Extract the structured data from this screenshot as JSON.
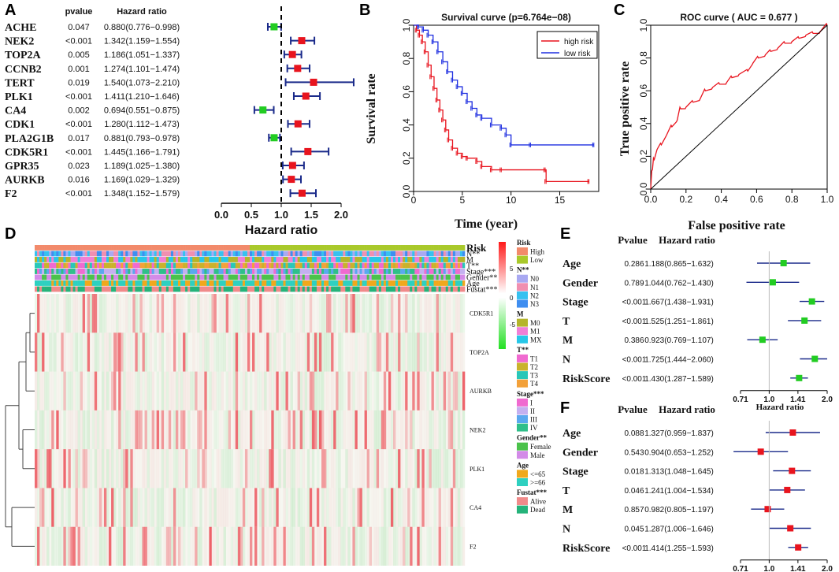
{
  "chart_data": [
    {
      "panel": "A",
      "type": "forest",
      "headers": {
        "pvalue": "pvalue",
        "hr": "Hazard ratio"
      },
      "xlabel": "Hazard ratio",
      "xlim": [
        0,
        2.0
      ],
      "ticks": [
        "0.0",
        "0.5",
        "1.0",
        "1.5",
        "2.0"
      ],
      "ref": 1.0,
      "rows": [
        {
          "gene": "ACHE",
          "p": "0.047",
          "hr_text": "0.880(0.776−0.998)",
          "hr": 0.88,
          "lo": 0.776,
          "hi": 0.998,
          "color": "#22cc22"
        },
        {
          "gene": "NEK2",
          "p": "<0.001",
          "hr_text": "1.342(1.159−1.554)",
          "hr": 1.342,
          "lo": 1.159,
          "hi": 1.554,
          "color": "#e8141e"
        },
        {
          "gene": "TOP2A",
          "p": "0.005",
          "hr_text": "1.186(1.051−1.337)",
          "hr": 1.186,
          "lo": 1.051,
          "hi": 1.337,
          "color": "#e8141e"
        },
        {
          "gene": "CCNB2",
          "p": "0.001",
          "hr_text": "1.274(1.101−1.474)",
          "hr": 1.274,
          "lo": 1.101,
          "hi": 1.474,
          "color": "#e8141e"
        },
        {
          "gene": "TERT",
          "p": "0.019",
          "hr_text": "1.540(1.073−2.210)",
          "hr": 1.54,
          "lo": 1.073,
          "hi": 2.21,
          "color": "#e8141e"
        },
        {
          "gene": "PLK1",
          "p": "<0.001",
          "hr_text": "1.411(1.210−1.646)",
          "hr": 1.411,
          "lo": 1.21,
          "hi": 1.646,
          "color": "#e8141e"
        },
        {
          "gene": "CA4",
          "p": "0.002",
          "hr_text": "0.694(0.551−0.875)",
          "hr": 0.694,
          "lo": 0.551,
          "hi": 0.875,
          "color": "#22cc22"
        },
        {
          "gene": "CDK1",
          "p": "<0.001",
          "hr_text": "1.280(1.112−1.473)",
          "hr": 1.28,
          "lo": 1.112,
          "hi": 1.473,
          "color": "#e8141e"
        },
        {
          "gene": "PLA2G1B",
          "p": "0.017",
          "hr_text": "0.881(0.793−0.978)",
          "hr": 0.881,
          "lo": 0.793,
          "hi": 0.978,
          "color": "#22cc22"
        },
        {
          "gene": "CDK5R1",
          "p": "<0.001",
          "hr_text": "1.445(1.166−1.791)",
          "hr": 1.445,
          "lo": 1.166,
          "hi": 1.791,
          "color": "#e8141e"
        },
        {
          "gene": "GPR35",
          "p": "0.023",
          "hr_text": "1.189(1.025−1.380)",
          "hr": 1.189,
          "lo": 1.025,
          "hi": 1.38,
          "color": "#e8141e"
        },
        {
          "gene": "AURKB",
          "p": "0.016",
          "hr_text": "1.169(1.029−1.329)",
          "hr": 1.169,
          "lo": 1.029,
          "hi": 1.329,
          "color": "#e8141e"
        },
        {
          "gene": "F2",
          "p": "<0.001",
          "hr_text": "1.348(1.152−1.579)",
          "hr": 1.348,
          "lo": 1.152,
          "hi": 1.579,
          "color": "#e8141e"
        }
      ]
    },
    {
      "panel": "B",
      "type": "line",
      "title": "Survival curve (p=6.764e−08)",
      "xlabel": "Time (year)",
      "ylabel": "Survival rate",
      "xlim": [
        0,
        19
      ],
      "ylim": [
        0,
        1
      ],
      "xticks": [
        "0",
        "5",
        "10",
        "15"
      ],
      "yticks": [
        "0.0",
        "0.2",
        "0.4",
        "0.6",
        "0.8",
        "1.0"
      ],
      "legend": [
        "high risk",
        "low risk"
      ],
      "series": [
        {
          "name": "high risk",
          "color": "#e8141e",
          "points": [
            [
              0,
              1.0
            ],
            [
              0.3,
              0.97
            ],
            [
              0.6,
              0.94
            ],
            [
              0.9,
              0.9
            ],
            [
              1.2,
              0.84
            ],
            [
              1.5,
              0.76
            ],
            [
              1.8,
              0.69
            ],
            [
              2.1,
              0.62
            ],
            [
              2.4,
              0.55
            ],
            [
              2.7,
              0.49
            ],
            [
              3.0,
              0.43
            ],
            [
              3.3,
              0.37
            ],
            [
              3.6,
              0.31
            ],
            [
              4.0,
              0.26
            ],
            [
              4.5,
              0.23
            ],
            [
              5.0,
              0.21
            ],
            [
              5.5,
              0.2
            ],
            [
              6.5,
              0.18
            ],
            [
              7.0,
              0.15
            ],
            [
              8.0,
              0.13
            ],
            [
              9.0,
              0.13
            ],
            [
              13.5,
              0.13
            ],
            [
              13.6,
              0.06
            ],
            [
              18.0,
              0.06
            ]
          ]
        },
        {
          "name": "low risk",
          "color": "#1f2fe0",
          "points": [
            [
              0,
              1.0
            ],
            [
              0.5,
              0.99
            ],
            [
              1.0,
              0.97
            ],
            [
              1.5,
              0.94
            ],
            [
              2.0,
              0.9
            ],
            [
              2.5,
              0.84
            ],
            [
              3.0,
              0.78
            ],
            [
              3.5,
              0.72
            ],
            [
              4.0,
              0.67
            ],
            [
              4.5,
              0.63
            ],
            [
              5.0,
              0.59
            ],
            [
              5.5,
              0.54
            ],
            [
              6.0,
              0.5
            ],
            [
              6.5,
              0.46
            ],
            [
              7.0,
              0.44
            ],
            [
              8.0,
              0.4
            ],
            [
              9.0,
              0.38
            ],
            [
              9.5,
              0.34
            ],
            [
              10.0,
              0.28
            ],
            [
              12.0,
              0.28
            ],
            [
              18.5,
              0.28
            ]
          ]
        }
      ]
    },
    {
      "panel": "C",
      "type": "line",
      "title": "ROC curve ( AUC =  0.677 )",
      "xlabel": "False positive rate",
      "ylabel": "True positive rate",
      "xlim": [
        0,
        1
      ],
      "ylim": [
        0,
        1
      ],
      "xticks": [
        "0.0",
        "0.2",
        "0.4",
        "0.6",
        "0.8",
        "1.0"
      ],
      "yticks": [
        "0.0",
        "0.2",
        "0.4",
        "0.6",
        "0.8",
        "1.0"
      ],
      "series": [
        {
          "name": "ROC",
          "color": "#e8141e",
          "points": [
            [
              0,
              0
            ],
            [
              0.01,
              0.12
            ],
            [
              0.02,
              0.18
            ],
            [
              0.04,
              0.25
            ],
            [
              0.06,
              0.27
            ],
            [
              0.09,
              0.33
            ],
            [
              0.12,
              0.38
            ],
            [
              0.15,
              0.42
            ],
            [
              0.17,
              0.49
            ],
            [
              0.2,
              0.5
            ],
            [
              0.24,
              0.53
            ],
            [
              0.28,
              0.55
            ],
            [
              0.31,
              0.6
            ],
            [
              0.35,
              0.62
            ],
            [
              0.39,
              0.64
            ],
            [
              0.43,
              0.65
            ],
            [
              0.46,
              0.68
            ],
            [
              0.5,
              0.7
            ],
            [
              0.55,
              0.72
            ],
            [
              0.58,
              0.77
            ],
            [
              0.61,
              0.8
            ],
            [
              0.65,
              0.82
            ],
            [
              0.68,
              0.84
            ],
            [
              0.72,
              0.86
            ],
            [
              0.76,
              0.89
            ],
            [
              0.8,
              0.9
            ],
            [
              0.84,
              0.92
            ],
            [
              0.88,
              0.94
            ],
            [
              0.92,
              0.95
            ],
            [
              0.96,
              0.96
            ],
            [
              1.0,
              1.0
            ]
          ]
        },
        {
          "name": "diagonal",
          "color": "#000000",
          "points": [
            [
              0,
              0
            ],
            [
              1,
              1
            ]
          ]
        }
      ]
    },
    {
      "panel": "D",
      "type": "heatmap",
      "annotation_rows": [
        "Risk",
        "N**",
        "M",
        "T**",
        "Stage***",
        "Gender**",
        "Age",
        "Fustat***"
      ],
      "genes": [
        "CDK5R1",
        "TOP2A",
        "AURKB",
        "NEK2",
        "PLK1",
        "CA4",
        "F2"
      ],
      "scale": [
        "5",
        "0",
        "-5"
      ],
      "legend": [
        {
          "title": "Risk",
          "items": [
            {
              "label": "High",
              "color": "#f28a6b"
            },
            {
              "label": "Low",
              "color": "#a9c92b"
            }
          ]
        },
        {
          "title": "N**",
          "items": [
            {
              "label": "N0",
              "color": "#a9a9f2"
            },
            {
              "label": "N1",
              "color": "#f08fb0"
            },
            {
              "label": "N2",
              "color": "#36c1f0"
            },
            {
              "label": "N3",
              "color": "#3f8ef0"
            }
          ]
        },
        {
          "title": "M",
          "items": [
            {
              "label": "M0",
              "color": "#b5b52a"
            },
            {
              "label": "M1",
              "color": "#f07fd6"
            },
            {
              "label": "MX",
              "color": "#27c7e8"
            }
          ]
        },
        {
          "title": "T**",
          "items": [
            {
              "label": "T1",
              "color": "#f06ad0"
            },
            {
              "label": "T2",
              "color": "#c9b22c"
            },
            {
              "label": "T3",
              "color": "#29c7b8"
            },
            {
              "label": "T4",
              "color": "#f3a13a"
            }
          ]
        },
        {
          "title": "Stage***",
          "items": [
            {
              "label": "I",
              "color": "#f06ad0"
            },
            {
              "label": "II",
              "color": "#c4b0f0"
            },
            {
              "label": "III",
              "color": "#5aa8ef"
            },
            {
              "label": "IV",
              "color": "#2fbf8a"
            }
          ]
        },
        {
          "title": "Gender**",
          "items": [
            {
              "label": "Female",
              "color": "#4bc24b"
            },
            {
              "label": "Male",
              "color": "#d38be8"
            }
          ]
        },
        {
          "title": "Age",
          "items": [
            {
              "label": "<=65",
              "color": "#f0a81c"
            },
            {
              "label": ">=66",
              "color": "#2ed0c0"
            }
          ]
        },
        {
          "title": "Fustat***",
          "items": [
            {
              "label": "Alive",
              "color": "#f08a8a"
            },
            {
              "label": "Dead",
              "color": "#25b37a"
            }
          ]
        }
      ]
    },
    {
      "panel": "E",
      "type": "forest",
      "headers": {
        "pvalue": "Pvalue",
        "hr": "Hazard ratio"
      },
      "xlabel": "Hazard ratio",
      "log": true,
      "xlim": [
        0.71,
        2.0
      ],
      "ticks": [
        "0.71",
        "1.0",
        "1.41",
        "2.0"
      ],
      "ref": 1.0,
      "rows": [
        {
          "label": "Age",
          "p": "0.286",
          "hr_text": "1.188(0.865−1.632)",
          "hr": 1.188,
          "lo": 0.865,
          "hi": 1.632,
          "color": "#22cc22"
        },
        {
          "label": "Gender",
          "p": "0.789",
          "hr_text": "1.044(0.762−1.430)",
          "hr": 1.044,
          "lo": 0.762,
          "hi": 1.43,
          "color": "#22cc22"
        },
        {
          "label": "Stage",
          "p": "<0.001",
          "hr_text": "1.667(1.438−1.931)",
          "hr": 1.667,
          "lo": 1.438,
          "hi": 1.931,
          "color": "#22cc22"
        },
        {
          "label": "T",
          "p": "<0.001",
          "hr_text": "1.525(1.251−1.861)",
          "hr": 1.525,
          "lo": 1.251,
          "hi": 1.861,
          "color": "#22cc22"
        },
        {
          "label": "M",
          "p": "0.386",
          "hr_text": "0.923(0.769−1.107)",
          "hr": 0.923,
          "lo": 0.769,
          "hi": 1.107,
          "color": "#22cc22"
        },
        {
          "label": "N",
          "p": "<0.001",
          "hr_text": "1.725(1.444−2.060)",
          "hr": 1.725,
          "lo": 1.444,
          "hi": 2.06,
          "color": "#22cc22"
        },
        {
          "label": "RiskScore",
          "p": "<0.001",
          "hr_text": "1.430(1.287−1.589)",
          "hr": 1.43,
          "lo": 1.287,
          "hi": 1.589,
          "color": "#22cc22"
        }
      ]
    },
    {
      "panel": "F",
      "type": "forest",
      "headers": {
        "pvalue": "Pvalue",
        "hr": "Hazard ratio"
      },
      "xlabel": "Hazard ratio",
      "log": true,
      "xlim": [
        0.71,
        2.0
      ],
      "ticks": [
        "0.71",
        "1.0",
        "1.41",
        "2.0"
      ],
      "ref": 1.0,
      "rows": [
        {
          "label": "Age",
          "p": "0.088",
          "hr_text": "1.327(0.959−1.837)",
          "hr": 1.327,
          "lo": 0.959,
          "hi": 1.837,
          "color": "#e8141e"
        },
        {
          "label": "Gender",
          "p": "0.543",
          "hr_text": "0.904(0.653−1.252)",
          "hr": 0.904,
          "lo": 0.653,
          "hi": 1.252,
          "color": "#e8141e"
        },
        {
          "label": "Stage",
          "p": "0.018",
          "hr_text": "1.313(1.048−1.645)",
          "hr": 1.313,
          "lo": 1.048,
          "hi": 1.645,
          "color": "#e8141e"
        },
        {
          "label": "T",
          "p": "0.046",
          "hr_text": "1.241(1.004−1.534)",
          "hr": 1.241,
          "lo": 1.004,
          "hi": 1.534,
          "color": "#e8141e"
        },
        {
          "label": "M",
          "p": "0.857",
          "hr_text": "0.982(0.805−1.197)",
          "hr": 0.982,
          "lo": 0.805,
          "hi": 1.197,
          "color": "#e8141e"
        },
        {
          "label": "N",
          "p": "0.045",
          "hr_text": "1.287(1.006−1.646)",
          "hr": 1.287,
          "lo": 1.006,
          "hi": 1.646,
          "color": "#e8141e"
        },
        {
          "label": "RiskScore",
          "p": "<0.001",
          "hr_text": "1.414(1.255−1.593)",
          "hr": 1.414,
          "lo": 1.255,
          "hi": 1.593,
          "color": "#e8141e"
        }
      ]
    }
  ]
}
